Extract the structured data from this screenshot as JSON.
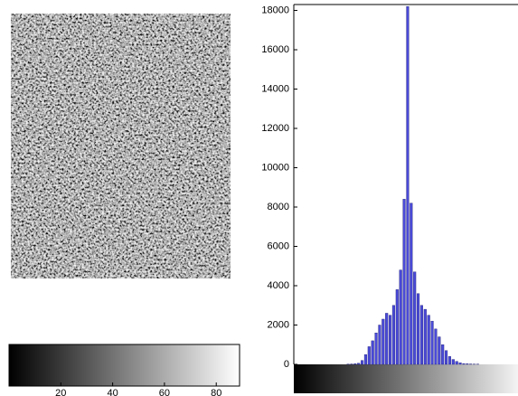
{
  "chart_data": [
    {
      "type": "image",
      "xlim": [
        0,
        89
      ],
      "xticks": [
        20,
        40,
        60,
        80
      ]
    },
    {
      "type": "histogram",
      "bins": [
        0,
        4,
        8,
        12,
        16,
        20,
        24,
        28,
        32,
        36,
        40,
        44,
        48,
        52,
        56,
        60,
        64,
        68,
        72,
        76,
        80,
        84,
        88,
        92,
        96,
        100,
        104,
        108,
        112,
        116,
        120,
        124,
        128,
        132,
        136,
        140,
        144,
        148,
        152,
        156,
        160,
        164,
        168,
        172,
        176,
        180,
        184,
        188,
        192,
        196,
        200,
        204,
        208,
        212,
        216,
        220,
        224,
        228,
        232,
        236,
        240,
        244,
        248,
        252,
        256
      ],
      "values": [
        0,
        0,
        0,
        0,
        0,
        0,
        0,
        0,
        0,
        0,
        0,
        0,
        0,
        0,
        0,
        10,
        20,
        30,
        60,
        200,
        500,
        900,
        1200,
        1600,
        2000,
        2300,
        2600,
        2500,
        3000,
        3800,
        4800,
        8400,
        18200,
        8200,
        4700,
        3600,
        3000,
        2800,
        2500,
        2200,
        1800,
        1400,
        1000,
        700,
        400,
        250,
        150,
        80,
        40,
        30,
        20,
        10,
        10,
        0,
        0,
        0,
        0,
        0,
        0,
        0,
        0,
        0,
        0,
        0
      ],
      "color": "#4a4ad8",
      "xlim": [
        0,
        256
      ],
      "ylim": [
        0,
        18300
      ],
      "yticks": [
        0,
        2000,
        4000,
        6000,
        8000,
        10000,
        12000,
        14000,
        16000,
        18000
      ]
    }
  ]
}
